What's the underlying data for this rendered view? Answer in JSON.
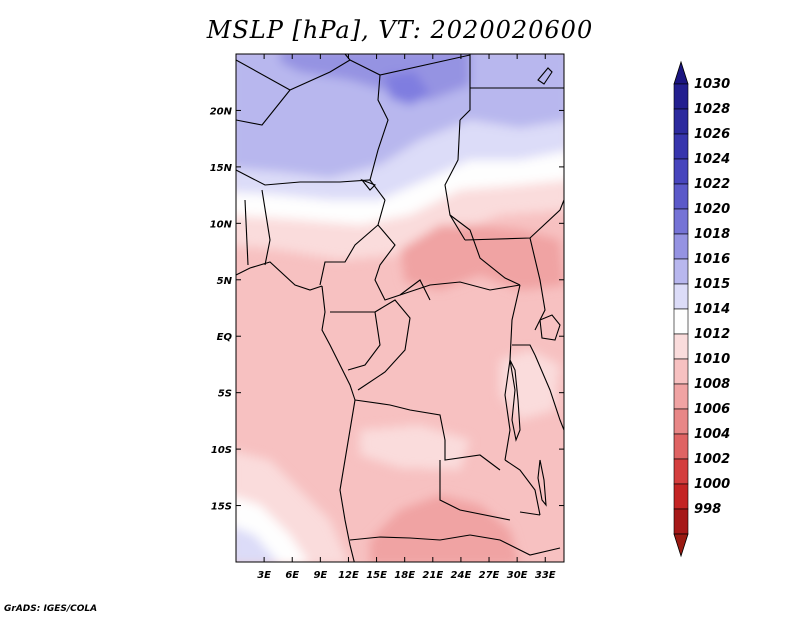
{
  "title": "MSLP [hPa], VT: 2020020600",
  "footer": "GrADS: IGES/COLA",
  "map": {
    "lon_range": [
      0,
      35
    ],
    "lat_range": [
      -20,
      25
    ],
    "lat_ticks": [
      {
        "value": 20,
        "label": "20N"
      },
      {
        "value": 15,
        "label": "15N"
      },
      {
        "value": 10,
        "label": "10N"
      },
      {
        "value": 5,
        "label": "5N"
      },
      {
        "value": 0,
        "label": "EQ"
      },
      {
        "value": -5,
        "label": "5S"
      },
      {
        "value": -10,
        "label": "10S"
      },
      {
        "value": -15,
        "label": "15S"
      }
    ],
    "lon_ticks": [
      {
        "value": 3,
        "label": "3E"
      },
      {
        "value": 6,
        "label": "6E"
      },
      {
        "value": 9,
        "label": "9E"
      },
      {
        "value": 12,
        "label": "12E"
      },
      {
        "value": 15,
        "label": "15E"
      },
      {
        "value": 18,
        "label": "18E"
      },
      {
        "value": 21,
        "label": "21E"
      },
      {
        "value": 24,
        "label": "24E"
      },
      {
        "value": 27,
        "label": "27E"
      },
      {
        "value": 30,
        "label": "30E"
      },
      {
        "value": 33,
        "label": "33E"
      }
    ]
  },
  "colorbar": {
    "levels": [
      {
        "label": "1030",
        "color": "#231f8f"
      },
      {
        "label": "1028",
        "color": "#2c2a9e"
      },
      {
        "label": "1026",
        "color": "#3735ad"
      },
      {
        "label": "1024",
        "color": "#4745bd"
      },
      {
        "label": "1022",
        "color": "#5b59c9"
      },
      {
        "label": "1020",
        "color": "#7573d6"
      },
      {
        "label": "1018",
        "color": "#9593e2"
      },
      {
        "label": "1016",
        "color": "#b8b7ee"
      },
      {
        "label": "1015",
        "color": "#dcdcf8"
      },
      {
        "label": "1014",
        "color": "#fefefe"
      },
      {
        "label": "1012",
        "color": "#fadcdc"
      },
      {
        "label": "1010",
        "color": "#f7c1c1"
      },
      {
        "label": "1008",
        "color": "#f0a3a3"
      },
      {
        "label": "1006",
        "color": "#e88787"
      },
      {
        "label": "1004",
        "color": "#df6363"
      },
      {
        "label": "1002",
        "color": "#d43e3e"
      },
      {
        "label": "1000",
        "color": "#c42424"
      },
      {
        "label": "998",
        "color": "#a61818"
      }
    ],
    "top_cap_color": "#1b1580",
    "bottom_cap_color": "#9a1a12"
  }
}
